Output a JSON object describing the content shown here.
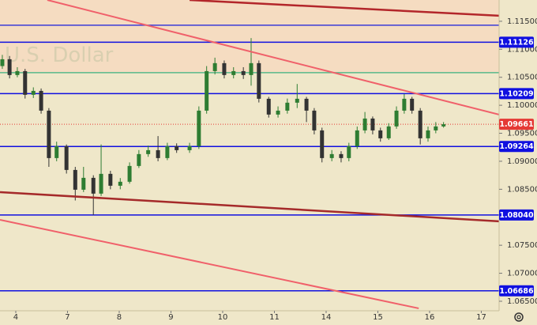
{
  "chart_data": {
    "type": "candlestick",
    "watermark": "U.S. Dollar",
    "xlim": [
      -0.305,
      9.344
    ],
    "xticks": [
      {
        "value": 0,
        "label": "4"
      },
      {
        "value": 1,
        "label": "7"
      },
      {
        "value": 2,
        "label": "8"
      },
      {
        "value": 3,
        "label": "9"
      },
      {
        "value": 4,
        "label": "10"
      },
      {
        "value": 5,
        "label": "11"
      },
      {
        "value": 6,
        "label": "14"
      },
      {
        "value": 7,
        "label": "15"
      },
      {
        "value": 8,
        "label": "16"
      },
      {
        "value": 9,
        "label": "17"
      }
    ],
    "ylim": [
      1.0633,
      1.1188
    ],
    "yticks": [
      {
        "value": 1.115,
        "label": "1.11500"
      },
      {
        "value": 1.11,
        "label": "1.11000"
      },
      {
        "value": 1.105,
        "label": "1.10500"
      },
      {
        "value": 1.1,
        "label": "1.10000"
      },
      {
        "value": 1.095,
        "label": "1.09500"
      },
      {
        "value": 1.09,
        "label": "1.09000"
      },
      {
        "value": 1.085,
        "label": "1.08500"
      },
      {
        "value": 1.075,
        "label": "1.07500"
      },
      {
        "value": 1.07,
        "label": "1.07000"
      },
      {
        "value": 1.065,
        "label": "1.06500"
      }
    ],
    "up_color": "#2e7d32",
    "down_color": "#333333",
    "x": [
      -0.26,
      -0.12,
      0.03,
      0.18,
      0.34,
      0.49,
      0.64,
      0.79,
      0.98,
      1.15,
      1.31,
      1.5,
      1.65,
      1.83,
      2.02,
      2.2,
      2.38,
      2.56,
      2.75,
      2.93,
      3.11,
      3.36,
      3.54,
      3.69,
      3.85,
      4.03,
      4.21,
      4.4,
      4.55,
      4.7,
      4.89,
      5.07,
      5.25,
      5.44,
      5.62,
      5.77,
      5.92,
      6.11,
      6.29,
      6.44,
      6.6,
      6.75,
      6.9,
      7.05,
      7.21,
      7.36,
      7.51,
      7.66,
      7.82,
      7.97,
      8.12,
      8.27
    ],
    "open": [
      1.107,
      1.10822,
      1.1054,
      1.1061,
      1.10187,
      1.10257,
      1.09904,
      1.09057,
      1.09269,
      1.08845,
      1.08492,
      1.08704,
      1.08422,
      1.08775,
      1.08563,
      1.08634,
      1.08916,
      1.09128,
      1.09198,
      1.09057,
      1.09269,
      1.09198,
      1.09269,
      1.09904,
      1.1061,
      1.10752,
      1.1054,
      1.1061,
      1.1054,
      1.10752,
      1.10116,
      1.09834,
      1.09904,
      1.10046,
      1.10116,
      1.09904,
      1.09551,
      1.09057,
      1.09128,
      1.09057,
      1.09269,
      1.09551,
      1.09763,
      1.09551,
      1.0941,
      1.09622,
      1.09904,
      1.10116,
      1.09904,
      1.0941,
      1.09551,
      1.09622
    ],
    "high": [
      1.109,
      1.1088,
      1.1068,
      1.1065,
      1.1032,
      1.103,
      1.0995,
      1.0935,
      1.093,
      1.089,
      1.089,
      1.0875,
      1.093,
      1.0883,
      1.087,
      1.0898,
      1.092,
      1.0928,
      1.0945,
      1.0933,
      1.0932,
      1.0933,
      1.0998,
      1.107,
      1.1085,
      1.108,
      1.1068,
      1.1068,
      1.112,
      1.108,
      1.1015,
      1.0998,
      1.1012,
      1.1038,
      1.1015,
      1.0995,
      1.096,
      1.092,
      1.0918,
      1.0933,
      1.0962,
      1.0988,
      1.098,
      1.096,
      1.0968,
      1.0998,
      1.102,
      1.1015,
      1.0995,
      1.0962,
      1.097,
      1.097
    ],
    "low": [
      1.1065,
      1.1048,
      1.105,
      1.1012,
      1.1013,
      1.0985,
      1.089,
      1.09,
      1.0878,
      1.083,
      1.0845,
      1.0804,
      1.0838,
      1.085,
      1.085,
      1.086,
      1.0888,
      1.0908,
      1.09,
      1.0902,
      1.0915,
      1.0915,
      1.0922,
      1.0985,
      1.1055,
      1.1048,
      1.1048,
      1.1047,
      1.1035,
      1.1005,
      1.0978,
      1.0978,
      1.0985,
      1.0995,
      1.097,
      1.0948,
      1.0898,
      1.09,
      1.0898,
      1.09,
      1.0922,
      1.095,
      1.0948,
      1.0935,
      1.0938,
      1.0958,
      1.0985,
      1.0985,
      1.093,
      1.0935,
      1.095,
      1.096
    ],
    "close": [
      1.10822,
      1.1054,
      1.1061,
      1.10187,
      1.10257,
      1.09904,
      1.09057,
      1.09269,
      1.08845,
      1.08492,
      1.08704,
      1.08422,
      1.08775,
      1.08563,
      1.08634,
      1.08916,
      1.09128,
      1.09198,
      1.09057,
      1.09269,
      1.09198,
      1.09269,
      1.09904,
      1.1061,
      1.10752,
      1.1054,
      1.1061,
      1.1054,
      1.10752,
      1.10116,
      1.09834,
      1.09904,
      1.10046,
      1.10116,
      1.09904,
      1.09551,
      1.09057,
      1.09128,
      1.09057,
      1.09269,
      1.09551,
      1.09763,
      1.09551,
      1.0941,
      1.09622,
      1.09904,
      1.10116,
      1.09904,
      1.0941,
      1.09551,
      1.09622,
      1.09661
    ],
    "zone": {
      "color": "#f6d9bf",
      "y": [
        1.10582,
        1.1188
      ]
    },
    "plain_lines": [
      {
        "color": "#3b3bd6",
        "value": 1.11429
      },
      {
        "color": "#57b98a",
        "value": 1.10582
      }
    ],
    "levels": [
      {
        "color": "#1010e0",
        "value": 1.11126,
        "label": "1.11126"
      },
      {
        "color": "#1010e0",
        "value": 1.10209,
        "label": "1.10209"
      },
      {
        "color": "#1010e0",
        "value": 1.09264,
        "label": "1.09264"
      },
      {
        "color": "#1010e0",
        "value": 1.0804,
        "label": "1.08040"
      },
      {
        "color": "#1010e0",
        "value": 1.06686,
        "label": "1.06686"
      }
    ],
    "last_price": {
      "color": "#e53935",
      "value": 1.09661,
      "label": "1.09661"
    },
    "trendlines": [
      {
        "color": "#b3262a",
        "width": 2.5,
        "x": [
          3.36,
          9.344
        ],
        "y": [
          1.1188,
          1.11599
        ]
      },
      {
        "color": "#f0606a",
        "width": 2,
        "x": [
          0.61,
          9.344
        ],
        "y": [
          1.1188,
          1.09833
        ]
      },
      {
        "color": "#a52a2a",
        "width": 2.5,
        "x": [
          -0.305,
          9.344
        ],
        "y": [
          1.08449,
          1.07927
        ]
      },
      {
        "color": "#f0606a",
        "width": 2,
        "x": [
          -0.305,
          7.79
        ],
        "y": [
          1.07955,
          1.06373
        ]
      }
    ]
  }
}
